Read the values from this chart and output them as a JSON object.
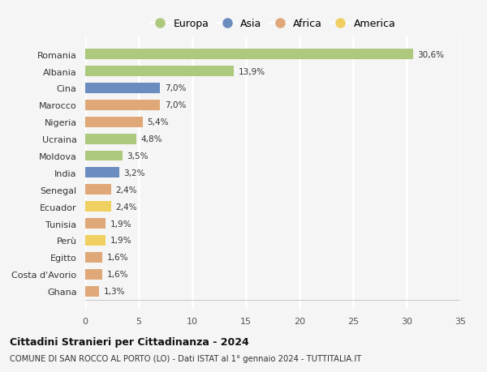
{
  "countries": [
    "Romania",
    "Albania",
    "Cina",
    "Marocco",
    "Nigeria",
    "Ucraina",
    "Moldova",
    "India",
    "Senegal",
    "Ecuador",
    "Tunisia",
    "Perù",
    "Egitto",
    "Costa d'Avorio",
    "Ghana"
  ],
  "values": [
    30.6,
    13.9,
    7.0,
    7.0,
    5.4,
    4.8,
    3.5,
    3.2,
    2.4,
    2.4,
    1.9,
    1.9,
    1.6,
    1.6,
    1.3
  ],
  "labels": [
    "30,6%",
    "13,9%",
    "7,0%",
    "7,0%",
    "5,4%",
    "4,8%",
    "3,5%",
    "3,2%",
    "2,4%",
    "2,4%",
    "1,9%",
    "1,9%",
    "1,6%",
    "1,6%",
    "1,3%"
  ],
  "continents": [
    "Europa",
    "Europa",
    "Asia",
    "Africa",
    "Africa",
    "Europa",
    "Europa",
    "Asia",
    "Africa",
    "America",
    "Africa",
    "America",
    "Africa",
    "Africa",
    "Africa"
  ],
  "colors": {
    "Europa": "#adc97e",
    "Asia": "#6b8cbf",
    "Africa": "#e0a878",
    "America": "#f0d060"
  },
  "legend_order": [
    "Europa",
    "Asia",
    "Africa",
    "America"
  ],
  "xlim": [
    0,
    35
  ],
  "xticks": [
    0,
    5,
    10,
    15,
    20,
    25,
    30,
    35
  ],
  "title_bold": "Cittadini Stranieri per Cittadinanza - 2024",
  "subtitle": "COMUNE DI SAN ROCCO AL PORTO (LO) - Dati ISTAT al 1° gennaio 2024 - TUTTITALIA.IT",
  "bg_color": "#f5f5f5",
  "grid_color": "#ffffff"
}
